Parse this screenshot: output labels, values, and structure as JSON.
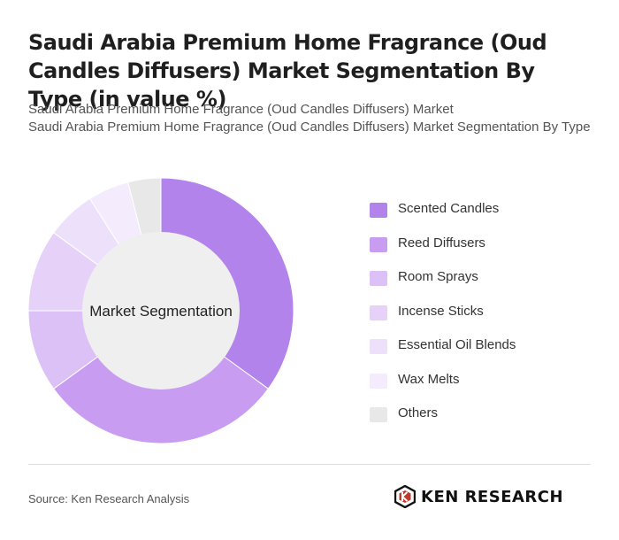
{
  "title": "Saudi Arabia Premium Home Fragrance (Oud Candles Diffusers) Market Segmentation By Type (in value %)",
  "subtitle_lines": [
    "Saudi Arabia Premium Home Fragrance (Oud Candles Diffusers) Market",
    "Saudi Arabia Premium Home Fragrance (Oud Candles Diffusers) Market Segmentation By Type"
  ],
  "chart_data": {
    "type": "pie",
    "donut": true,
    "center_label": "Market Segmentation",
    "categories": [
      "Scented Candles",
      "Reed Diffusers",
      "Room Sprays",
      "Incense Sticks",
      "Essential Oil Blends",
      "Wax Melts",
      "Others"
    ],
    "values": [
      35,
      30,
      10,
      10,
      6,
      5,
      4
    ],
    "colors": [
      "#b283ea",
      "#c89cf0",
      "#dcc1f7",
      "#e6d2f9",
      "#ede0fb",
      "#f4ecfd",
      "#e8e8e8"
    ],
    "legend_position": "right"
  },
  "footer": {
    "source": "Source: Ken Research Analysis",
    "logo_text": "KEN RESEARCH"
  }
}
